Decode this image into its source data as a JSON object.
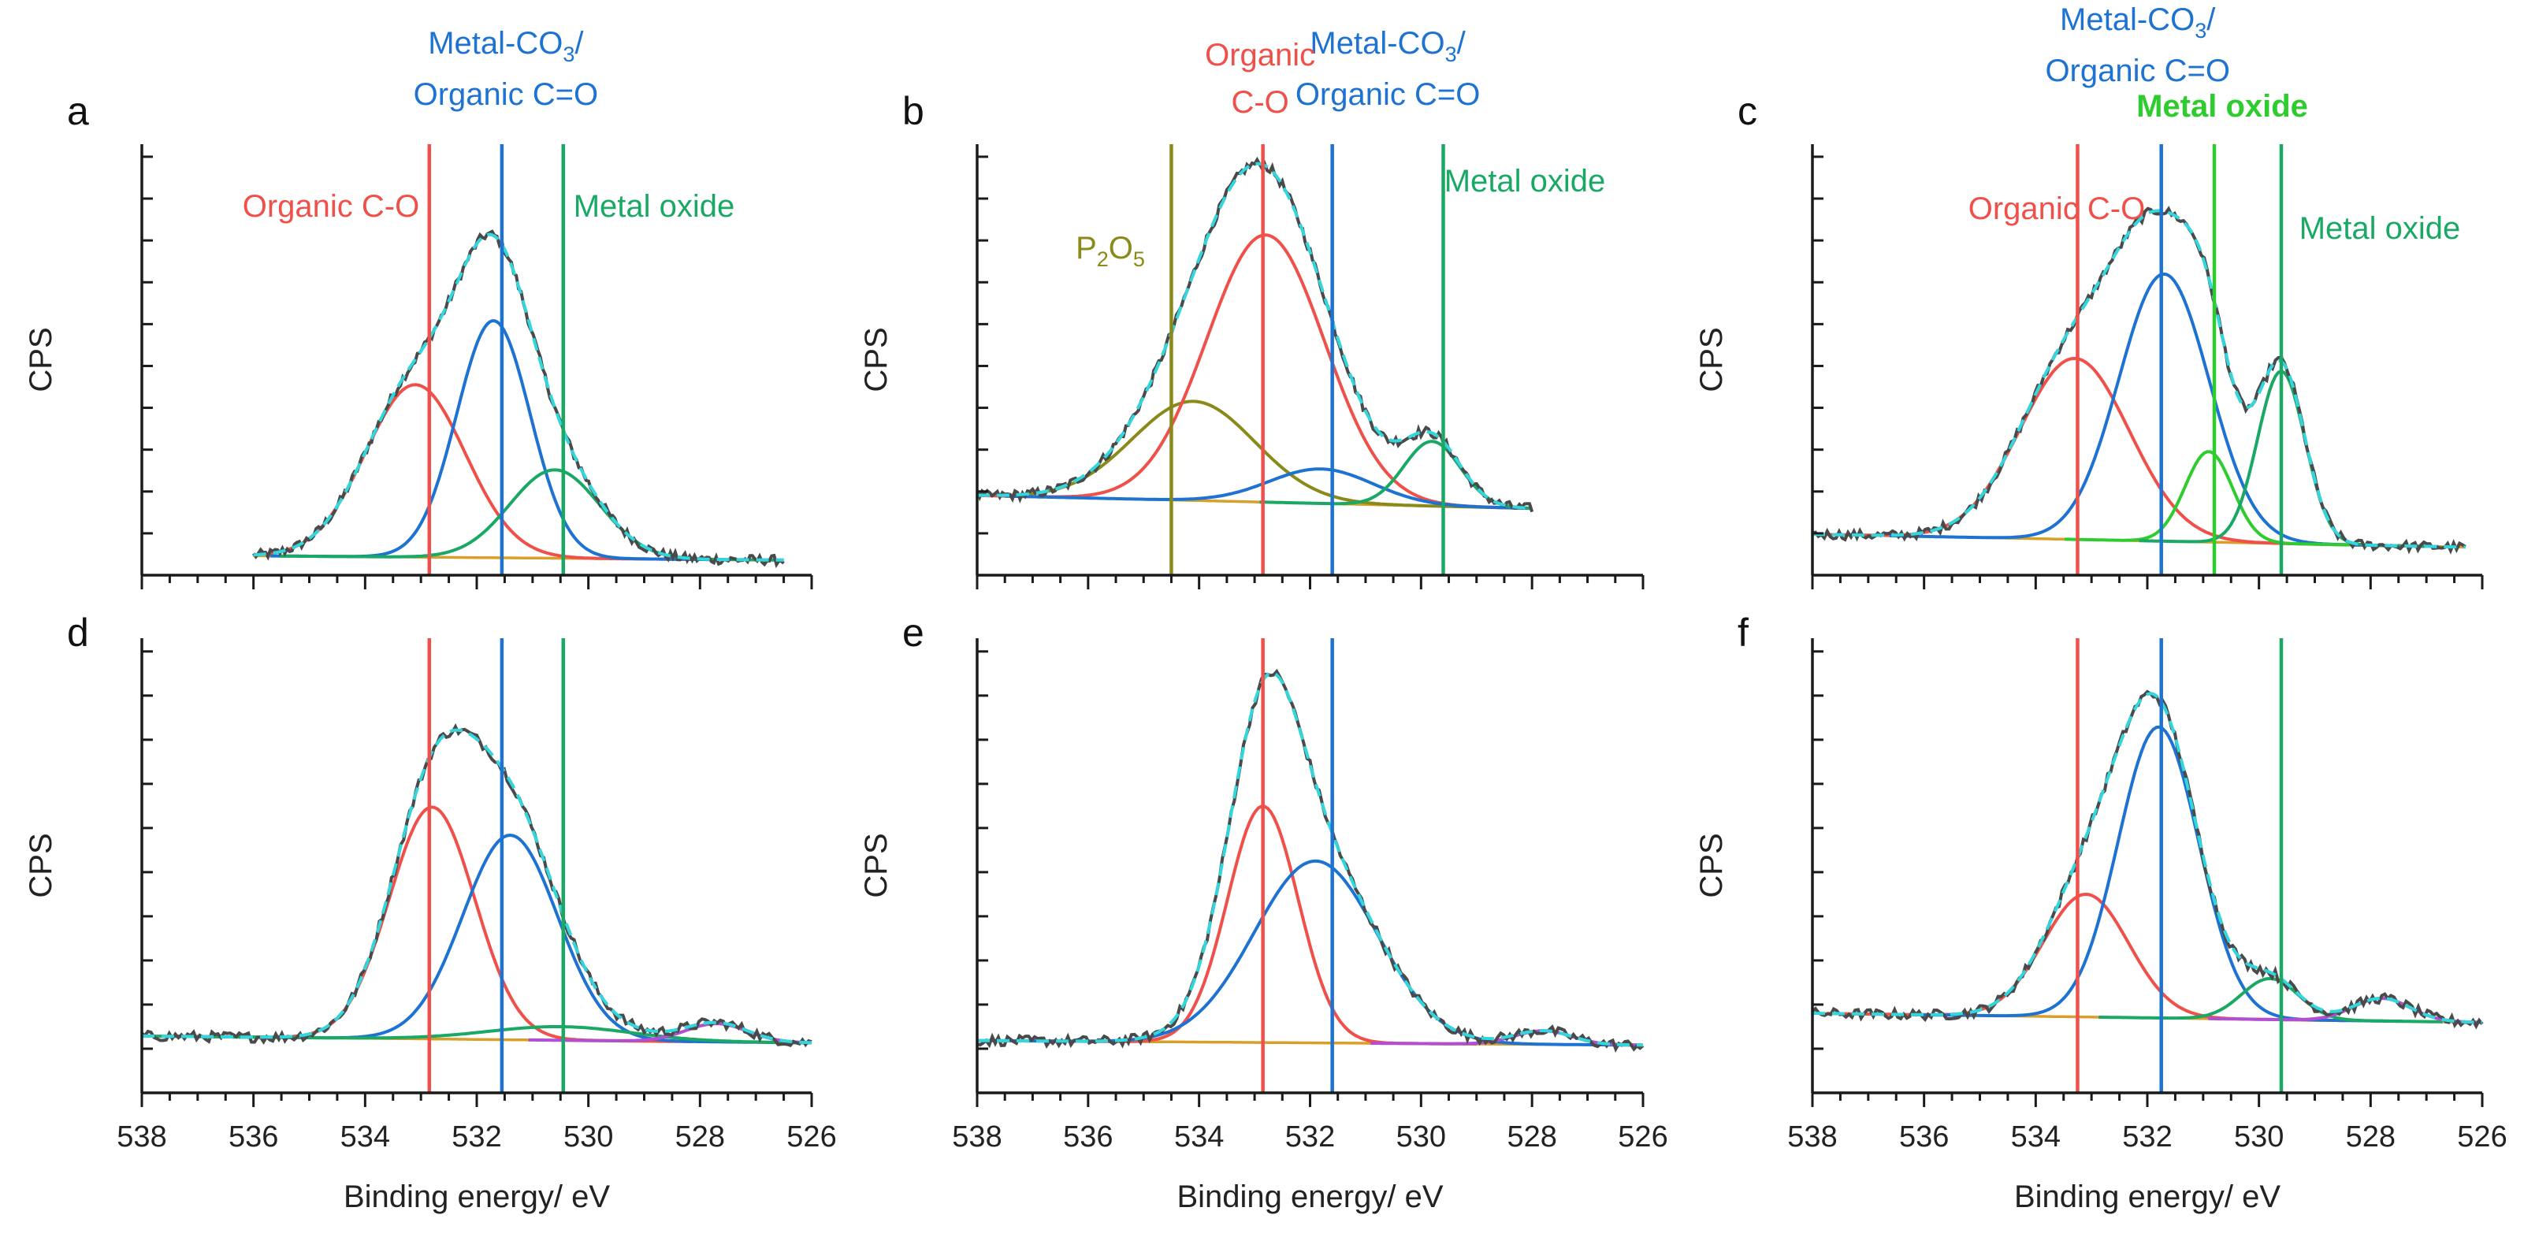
{
  "chart_data": [
    {
      "type": "line",
      "panel": "a",
      "xlabel": "",
      "ylabel": "CPS",
      "xlim": [
        538,
        526
      ],
      "xticks": [
        538,
        536,
        534,
        532,
        530,
        528,
        526
      ],
      "ylim": [
        0,
        100
      ],
      "baseline": [
        [
          536.0,
          4.5
        ],
        [
          526.5,
          3.5
        ]
      ],
      "peaks": [
        {
          "name": "Organic C-O",
          "color": "#f0504a",
          "center": 533.1,
          "height": 40,
          "fwhm": 2.1
        },
        {
          "name": "Metal-CO3/Organic C=O",
          "color": "#1e73d2",
          "center": 531.7,
          "height": 55,
          "fwhm": 1.55
        },
        {
          "name": "Metal oxide",
          "color": "#1aa865",
          "center": 530.6,
          "height": 20.5,
          "fwhm": 1.9
        }
      ],
      "vlines": [
        {
          "x": 532.85,
          "color": "#f0504a"
        },
        {
          "x": 531.55,
          "color": "#1e73d2"
        },
        {
          "x": 530.45,
          "color": "#1aa865"
        }
      ],
      "annotations": [
        {
          "text": "Organic C-O",
          "color": "#f0504a",
          "pos": "left-mid"
        },
        {
          "text": "Metal oxide",
          "color": "#1aa865",
          "pos": "right-mid"
        }
      ],
      "top_annotation": {
        "line1_pre": "Metal-CO",
        "line1_sub": "3",
        "line1_post": "/",
        "line2": "Organic C=O",
        "color": "#1e73d2"
      }
    },
    {
      "type": "line",
      "panel": "b",
      "xlabel": "",
      "ylabel": "CPS",
      "xlim": [
        538,
        526
      ],
      "xticks": [
        538,
        536,
        534,
        532,
        530,
        528,
        526
      ],
      "ylim": [
        0,
        100
      ],
      "baseline": [
        [
          538.0,
          18.5
        ],
        [
          528.0,
          15.5
        ]
      ],
      "peaks": [
        {
          "name": "P2O5",
          "color": "#8a8a1a",
          "center": 534.1,
          "height": 23,
          "fwhm": 2.6
        },
        {
          "name": "Organic C-O",
          "color": "#f0504a",
          "center": 532.8,
          "height": 62,
          "fwhm": 2.5
        },
        {
          "name": "Metal-CO3/Organic C=O",
          "color": "#1e73d2",
          "center": 531.8,
          "height": 8,
          "fwhm": 2.2
        },
        {
          "name": "Metal oxide",
          "color": "#1aa865",
          "center": 529.8,
          "height": 15,
          "fwhm": 1.2
        }
      ],
      "vlines": [
        {
          "x": 534.5,
          "color": "#8a8a1a"
        },
        {
          "x": 532.85,
          "color": "#f0504a"
        },
        {
          "x": 531.6,
          "color": "#1e73d2"
        },
        {
          "x": 529.6,
          "color": "#1aa865"
        }
      ],
      "annotations": [
        {
          "text": "Metal oxide",
          "color": "#1aa865",
          "pos": "right-top"
        }
      ],
      "p2o5_label": {
        "pre": "P",
        "sub1": "2",
        "mid": "O",
        "sub2": "5",
        "color": "#8a8a1a"
      },
      "top_annotation": {
        "line1_pre": "Metal-CO",
        "line1_sub": "3",
        "line1_post": "/",
        "line2": "Organic C=O",
        "color": "#1e73d2"
      },
      "top_annotation_red": {
        "line1": "Organic",
        "line2": "C-O",
        "color": "#f0504a"
      }
    },
    {
      "type": "line",
      "panel": "c",
      "xlabel": "",
      "ylabel": "CPS",
      "xlim": [
        538,
        526
      ],
      "xticks": [
        538,
        536,
        534,
        532,
        530,
        528,
        526
      ],
      "ylim": [
        0,
        100
      ],
      "baseline": [
        [
          538.0,
          9.5
        ],
        [
          526.3,
          6.5
        ]
      ],
      "peaks": [
        {
          "name": "Organic C-O",
          "color": "#f0504a",
          "center": 533.3,
          "height": 42,
          "fwhm": 2.3
        },
        {
          "name": "Metal-CO3/Organic C=O",
          "color": "#1e73d2",
          "center": 531.7,
          "height": 62,
          "fwhm": 1.9
        },
        {
          "name": "Metal oxide",
          "color": "#2ecc2e",
          "center": 530.9,
          "height": 21,
          "fwhm": 1.0
        },
        {
          "name": "Metal oxide",
          "color": "#1aa865",
          "center": 529.6,
          "height": 40,
          "fwhm": 1.0
        }
      ],
      "vlines": [
        {
          "x": 533.25,
          "color": "#f0504a"
        },
        {
          "x": 531.75,
          "color": "#1e73d2"
        },
        {
          "x": 530.8,
          "color": "#2ecc2e"
        },
        {
          "x": 529.6,
          "color": "#1aa865"
        }
      ],
      "annotations": [
        {
          "text": "Organic C-O",
          "color": "#f0504a",
          "pos": "left-mid"
        },
        {
          "text": "Metal oxide",
          "color": "#1aa865",
          "pos": "right-mid"
        }
      ],
      "top_annotation": {
        "line1_pre": "Metal-CO",
        "line1_sub": "3",
        "line1_post": "/",
        "line2": "Organic C=O",
        "color": "#1e73d2"
      },
      "top_annotation_green": {
        "text": "Metal oxide",
        "color": "#2ecc2e"
      }
    },
    {
      "type": "line",
      "panel": "d",
      "xlabel": "Binding energy/ eV",
      "ylabel": "CPS",
      "xlim": [
        538,
        526
      ],
      "xticks": [
        538,
        536,
        534,
        532,
        530,
        528,
        526
      ],
      "ylim": [
        0,
        100
      ],
      "baseline": [
        [
          538.0,
          12.5
        ],
        [
          526.0,
          11.0
        ]
      ],
      "peaks": [
        {
          "name": "Organic C-O",
          "color": "#f0504a",
          "center": 532.8,
          "height": 51,
          "fwhm": 1.8
        },
        {
          "name": "Metal-CO3/Organic C=O",
          "color": "#1e73d2",
          "center": 531.4,
          "height": 45,
          "fwhm": 2.0
        },
        {
          "name": "Metal oxide",
          "color": "#1aa865",
          "center": 530.5,
          "height": 3,
          "fwhm": 3.0
        },
        {
          "name": "",
          "color": "#b04fd2",
          "center": 527.7,
          "height": 4,
          "fwhm": 1.3
        }
      ],
      "vlines": [
        {
          "x": 532.85,
          "color": "#f0504a"
        },
        {
          "x": 531.55,
          "color": "#1e73d2"
        },
        {
          "x": 530.45,
          "color": "#1aa865"
        }
      ]
    },
    {
      "type": "line",
      "panel": "e",
      "xlabel": "Binding energy/ eV",
      "ylabel": "CPS",
      "xlim": [
        538,
        526
      ],
      "xticks": [
        538,
        536,
        534,
        532,
        530,
        528,
        526
      ],
      "ylim": [
        0,
        100
      ],
      "baseline": [
        [
          538.0,
          11.5
        ],
        [
          526.0,
          10.5
        ]
      ],
      "peaks": [
        {
          "name": "Organic C-O",
          "color": "#f0504a",
          "center": 532.85,
          "height": 52,
          "fwhm": 1.5
        },
        {
          "name": "Metal-CO3/Organic C=O",
          "color": "#1e73d2",
          "center": 531.9,
          "height": 40,
          "fwhm": 2.6
        },
        {
          "name": "",
          "color": "#b04fd2",
          "center": 527.8,
          "height": 3,
          "fwhm": 1.2
        }
      ],
      "vlines": [
        {
          "x": 532.85,
          "color": "#f0504a"
        },
        {
          "x": 531.6,
          "color": "#1e73d2"
        }
      ]
    },
    {
      "type": "line",
      "panel": "f",
      "xlabel": "Binding energy/ eV",
      "ylabel": "CPS",
      "xlim": [
        538,
        526
      ],
      "xticks": [
        538,
        536,
        534,
        532,
        530,
        528,
        526
      ],
      "ylim": [
        0,
        100
      ],
      "baseline": [
        [
          538.0,
          17.5
        ],
        [
          526.0,
          15.5
        ]
      ],
      "peaks": [
        {
          "name": "Organic C-O",
          "color": "#f0504a",
          "center": 533.1,
          "height": 27,
          "fwhm": 1.8
        },
        {
          "name": "Metal-CO3/Organic C=O",
          "color": "#1e73d2",
          "center": 531.8,
          "height": 64,
          "fwhm": 1.7
        },
        {
          "name": "Metal oxide",
          "color": "#1aa865",
          "center": 529.8,
          "height": 9,
          "fwhm": 1.2
        },
        {
          "name": "",
          "color": "#b04fd2",
          "center": 527.8,
          "height": 5,
          "fwhm": 1.2
        }
      ],
      "vlines": [
        {
          "x": 533.25,
          "color": "#f0504a"
        },
        {
          "x": 531.75,
          "color": "#1e73d2"
        },
        {
          "x": 529.6,
          "color": "#1aa865"
        }
      ]
    }
  ],
  "colors": {
    "raw": "#4a4a4a",
    "envelope": "#33d6dc",
    "baseline": "#d8a02a",
    "axis": "#1a1a1a"
  }
}
